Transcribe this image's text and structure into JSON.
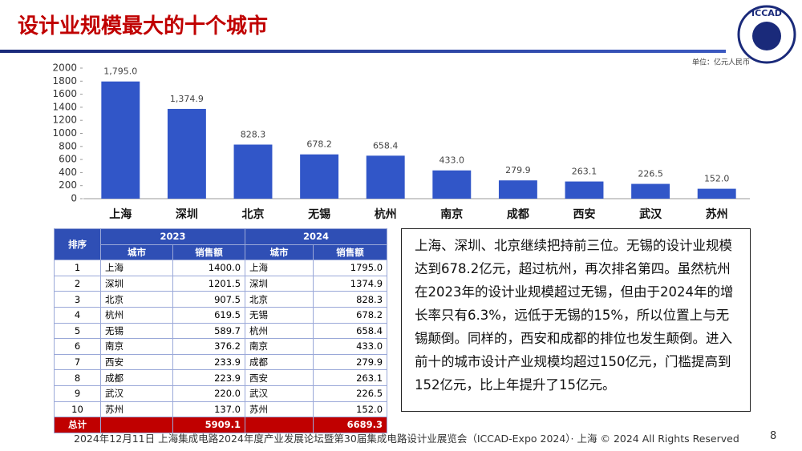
{
  "header": {
    "title": "设计业规模最大的十个城市",
    "logo": "ICCAD"
  },
  "chart_data": {
    "type": "bar",
    "unit": "单位：亿元人民币",
    "categories": [
      "上海",
      "深圳",
      "北京",
      "无锡",
      "杭州",
      "南京",
      "成都",
      "西安",
      "武汉",
      "苏州"
    ],
    "values": [
      1795.0,
      1374.9,
      828.3,
      678.2,
      658.4,
      433.0,
      279.9,
      263.1,
      226.5,
      152.0
    ],
    "value_labels": [
      "1,795.0",
      "1,374.9",
      "828.3",
      "678.2",
      "658.4",
      "433.0",
      "279.9",
      "263.1",
      "226.5",
      "152.0"
    ],
    "color": "#3156c8",
    "ylim": [
      0,
      2000
    ],
    "yticks": [
      0,
      200,
      400,
      600,
      800,
      1000,
      1200,
      1400,
      1600,
      1800,
      2000
    ]
  },
  "table": {
    "corner": "排序",
    "years": [
      "2023",
      "2024"
    ],
    "subheaders": [
      "城市",
      "销售额",
      "城市",
      "销售额"
    ],
    "rows": [
      [
        "1",
        "上海",
        "1400.0",
        "上海",
        "1795.0"
      ],
      [
        "2",
        "深圳",
        "1201.5",
        "深圳",
        "1374.9"
      ],
      [
        "3",
        "北京",
        "907.5",
        "北京",
        "828.3"
      ],
      [
        "4",
        "杭州",
        "619.5",
        "无锡",
        "678.2"
      ],
      [
        "5",
        "无锡",
        "589.7",
        "杭州",
        "658.4"
      ],
      [
        "6",
        "南京",
        "376.2",
        "南京",
        "433.0"
      ],
      [
        "7",
        "西安",
        "233.9",
        "成都",
        "279.9"
      ],
      [
        "8",
        "成都",
        "223.9",
        "西安",
        "263.1"
      ],
      [
        "9",
        "武汉",
        "220.0",
        "武汉",
        "226.5"
      ],
      [
        "10",
        "苏州",
        "137.0",
        "苏州",
        "152.0"
      ]
    ],
    "total": [
      "总计",
      "5909.1",
      "6689.3"
    ]
  },
  "commentary": "上海、深圳、北京继续把持前三位。无锡的设计业规模达到678.2亿元，超过杭州，再次排名第四。虽然杭州在2023年的设计业规模超过无锡，但由于2024年的增长率只有6.3%，远低于无锡的15%，所以位置上与无锡颠倒。同样的，西安和成都的排位也发生颠倒。进入前十的城市设计产业规模均超过150亿元，门槛提高到152亿元，比上年提升了15亿元。",
  "footer": "2024年12月11日 上海集成电路2024年度产业发展论坛暨第30届集成电路设计业展览会（ICCAD-Expo 2024）· 上海 © 2024 All Rights Reserved",
  "page_number": "8"
}
